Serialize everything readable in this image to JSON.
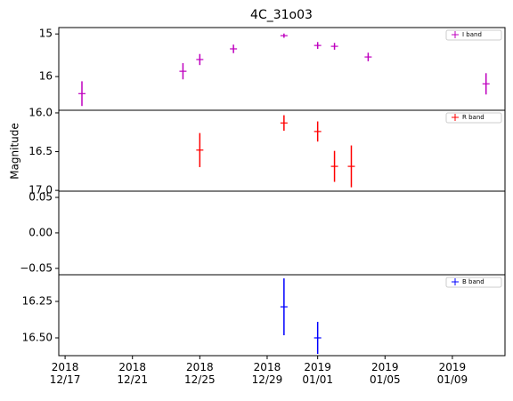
{
  "chart_data": {
    "type": "errorbar",
    "title": "4C_31o03",
    "y_label": "Magnitude",
    "xlim": [
      "2018-12-16T15:00",
      "2019-01-12T03:00"
    ],
    "xticks": [
      {
        "value": "2018-12-17",
        "label": "2018\n12/17"
      },
      {
        "value": "2018-12-21",
        "label": "2018\n12/21"
      },
      {
        "value": "2018-12-25",
        "label": "2018\n12/25"
      },
      {
        "value": "2018-12-29",
        "label": "2018\n12/29"
      },
      {
        "value": "2019-01-01",
        "label": "2019\n01/01"
      },
      {
        "value": "2019-01-05",
        "label": "2019\n01/05"
      },
      {
        "value": "2019-01-09",
        "label": "2019\n01/09"
      }
    ],
    "legend_position": "upper right",
    "panels": [
      {
        "ylim": [
          14.85,
          16.79
        ],
        "inverted": true,
        "yticks": [
          15,
          16
        ],
        "series": [
          {
            "name": "I band",
            "color": "#bf00bf",
            "x": [
              "2018-12-18",
              "2018-12-24",
              "2018-12-25",
              "2018-12-27",
              "2018-12-30",
              "2019-01-01",
              "2019-01-02",
              "2019-01-04",
              "2019-01-11"
            ],
            "values": [
              16.4,
              15.875,
              15.6,
              15.35,
              15.04,
              15.27,
              15.29,
              15.54,
              16.17
            ],
            "errors": [
              0.29,
              0.19,
              0.13,
              0.1,
              0.05,
              0.08,
              0.08,
              0.1,
              0.25
            ]
          }
        ]
      },
      {
        "ylim": [
          15.966,
          17.01
        ],
        "inverted": true,
        "yticks": [
          {
            "value": 16,
            "label": "16.0"
          },
          16.5,
          {
            "value": 17,
            "label": "17.0"
          }
        ],
        "series": [
          {
            "name": "R band",
            "color": "#ff0000",
            "x": [
              "2018-12-25",
              "2018-12-30",
              "2019-01-01",
              "2019-01-02",
              "2019-01-03"
            ],
            "values": [
              16.48,
              16.13,
              16.24,
              16.69,
              16.69
            ],
            "errors": [
              0.22,
              0.1,
              0.13,
              0.2,
              0.27
            ]
          }
        ]
      },
      {
        "ylim": [
          -0.059,
          0.0588
        ],
        "inverted": false,
        "yticks": [
          {
            "value": 0.05,
            "label": "0.05"
          },
          {
            "value": 0,
            "label": "0.00"
          },
          {
            "value": -0.05,
            "label": "−0.05"
          }
        ],
        "series": []
      },
      {
        "ylim": [
          16.067,
          16.622
        ],
        "inverted": true,
        "yticks": [
          16.25,
          {
            "value": 16.5,
            "label": "16.50"
          }
        ],
        "series": [
          {
            "name": "B band",
            "color": "#0000ff",
            "x": [
              "2018-12-30",
              "2019-01-01"
            ],
            "values": [
              16.287,
              16.5
            ],
            "errors": [
              0.195,
              0.11
            ]
          }
        ]
      }
    ]
  }
}
